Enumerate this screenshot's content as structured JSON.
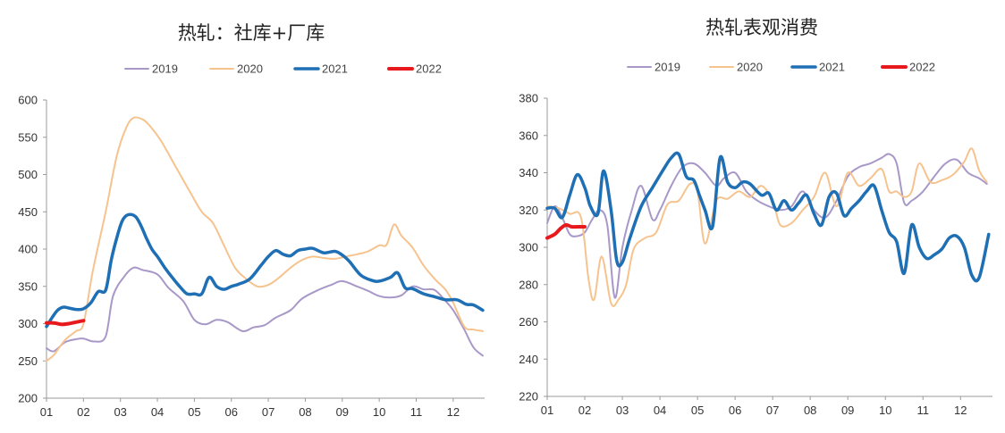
{
  "chart_data": [
    {
      "type": "line",
      "title": "热轧：社库+厂库",
      "x_ticks": [
        "01",
        "02",
        "03",
        "04",
        "05",
        "06",
        "07",
        "08",
        "09",
        "10",
        "11",
        "12"
      ],
      "ylim": [
        200,
        600
      ],
      "y_ticks": [
        200,
        250,
        300,
        350,
        400,
        450,
        500,
        550,
        600
      ],
      "legend_position": "top",
      "grid": false,
      "series": [
        {
          "name": "2019",
          "color": "#a898c8",
          "width": 2,
          "x": [
            1.0,
            1.2,
            1.5,
            1.8,
            2.0,
            2.3,
            2.6,
            2.8,
            3.1,
            3.35,
            3.6,
            4.0,
            4.3,
            4.7,
            5.0,
            5.3,
            5.6,
            5.9,
            6.3,
            6.6,
            6.9,
            7.2,
            7.6,
            7.9,
            8.3,
            8.7,
            9.0,
            9.4,
            9.7,
            10.0,
            10.3,
            10.6,
            10.9,
            11.2,
            11.5,
            11.8,
            12.0,
            12.3,
            12.55,
            12.8
          ],
          "y": [
            267,
            263,
            275,
            279,
            280,
            276,
            283,
            337,
            363,
            375,
            372,
            366,
            348,
            330,
            305,
            299,
            305,
            302,
            290,
            295,
            298,
            308,
            318,
            333,
            344,
            352,
            357,
            350,
            344,
            337,
            335,
            338,
            350,
            346,
            345,
            330,
            318,
            292,
            268,
            257
          ]
        },
        {
          "name": "2020",
          "color": "#f6c38e",
          "width": 2,
          "x": [
            1.0,
            1.2,
            1.5,
            1.8,
            2.0,
            2.25,
            2.6,
            2.9,
            3.15,
            3.35,
            3.6,
            3.8,
            4.1,
            4.5,
            4.9,
            5.2,
            5.5,
            5.8,
            6.1,
            6.4,
            6.7,
            7.0,
            7.3,
            7.6,
            7.9,
            8.2,
            8.5,
            8.8,
            9.1,
            9.4,
            9.7,
            10.0,
            10.2,
            10.4,
            10.6,
            10.9,
            11.2,
            11.5,
            11.8,
            12.0,
            12.3,
            12.55,
            12.8
          ],
          "y": [
            250,
            258,
            278,
            290,
            300,
            370,
            450,
            525,
            562,
            576,
            574,
            565,
            545,
            510,
            475,
            450,
            435,
            405,
            375,
            360,
            350,
            352,
            362,
            375,
            385,
            390,
            388,
            387,
            390,
            393,
            397,
            405,
            406,
            433,
            418,
            402,
            378,
            360,
            345,
            328,
            296,
            292,
            290
          ]
        },
        {
          "name": "2021",
          "color": "#1f6fb5",
          "width": 3.5,
          "x": [
            1.0,
            1.15,
            1.3,
            1.45,
            1.6,
            1.8,
            2.0,
            2.2,
            2.4,
            2.6,
            2.75,
            2.9,
            3.05,
            3.2,
            3.4,
            3.55,
            3.7,
            3.85,
            4.0,
            4.2,
            4.4,
            4.6,
            4.8,
            5.0,
            5.2,
            5.4,
            5.6,
            5.8,
            6.0,
            6.2,
            6.5,
            6.8,
            7.0,
            7.2,
            7.4,
            7.6,
            7.8,
            8.0,
            8.2,
            8.5,
            8.8,
            9.0,
            9.2,
            9.5,
            9.8,
            10.0,
            10.3,
            10.5,
            10.7,
            10.9,
            11.2,
            11.5,
            11.8,
            12.1,
            12.35,
            12.55,
            12.8
          ],
          "y": [
            296,
            308,
            318,
            322,
            321,
            319,
            320,
            328,
            343,
            345,
            385,
            415,
            438,
            446,
            444,
            432,
            415,
            400,
            390,
            375,
            362,
            350,
            340,
            340,
            340,
            362,
            350,
            346,
            350,
            353,
            360,
            378,
            390,
            398,
            393,
            391,
            398,
            400,
            401,
            395,
            397,
            392,
            383,
            365,
            358,
            357,
            362,
            368,
            348,
            347,
            340,
            336,
            332,
            332,
            326,
            325,
            318
          ]
        },
        {
          "name": "2022",
          "color": "#e8191c",
          "width": 4,
          "x": [
            1.0,
            1.2,
            1.4,
            1.6,
            1.8,
            2.0
          ],
          "y": [
            301,
            301,
            299,
            300,
            302,
            304
          ]
        }
      ]
    },
    {
      "type": "line",
      "title": "热轧表观消费",
      "x_ticks": [
        "01",
        "02",
        "03",
        "04",
        "05",
        "06",
        "07",
        "08",
        "09",
        "10",
        "11",
        "12"
      ],
      "ylim": [
        220,
        380
      ],
      "y_ticks": [
        220,
        240,
        260,
        280,
        300,
        320,
        340,
        360,
        380
      ],
      "legend_position": "top",
      "grid": false,
      "series": [
        {
          "name": "2019",
          "color": "#a898c8",
          "width": 2,
          "x": [
            1.0,
            1.2,
            1.4,
            1.6,
            1.8,
            2.0,
            2.2,
            2.4,
            2.6,
            2.8,
            3.0,
            3.25,
            3.5,
            3.8,
            4.0,
            4.3,
            4.6,
            4.9,
            5.2,
            5.5,
            5.7,
            6.0,
            6.3,
            6.6,
            6.9,
            7.2,
            7.5,
            7.8,
            8.1,
            8.4,
            8.7,
            9.0,
            9.3,
            9.6,
            9.9,
            10.1,
            10.3,
            10.5,
            10.7,
            11.0,
            11.3,
            11.6,
            11.9,
            12.2,
            12.5,
            12.7
          ],
          "y": [
            313,
            322,
            316,
            307,
            306,
            308,
            315,
            320,
            312,
            273,
            300,
            320,
            333,
            315,
            320,
            333,
            343,
            345,
            340,
            333,
            337,
            340,
            330,
            325,
            322,
            320,
            322,
            330,
            320,
            316,
            325,
            338,
            343,
            345,
            348,
            350,
            345,
            324,
            325,
            330,
            338,
            345,
            347,
            340,
            337,
            334
          ]
        },
        {
          "name": "2020",
          "color": "#f6c38e",
          "width": 2,
          "x": [
            1.0,
            1.3,
            1.6,
            1.9,
            2.1,
            2.25,
            2.45,
            2.7,
            2.9,
            3.1,
            3.3,
            3.6,
            3.9,
            4.2,
            4.5,
            4.8,
            5.0,
            5.2,
            5.5,
            5.8,
            6.1,
            6.4,
            6.7,
            7.0,
            7.2,
            7.5,
            7.8,
            8.1,
            8.4,
            8.7,
            9.0,
            9.3,
            9.6,
            9.9,
            10.1,
            10.3,
            10.5,
            10.7,
            10.9,
            11.2,
            11.5,
            11.8,
            12.1,
            12.3,
            12.5,
            12.7
          ],
          "y": [
            322,
            321,
            318,
            316,
            283,
            272,
            295,
            270,
            272,
            280,
            299,
            305,
            308,
            323,
            325,
            334,
            330,
            302,
            325,
            326,
            330,
            327,
            333,
            325,
            312,
            313,
            320,
            327,
            340,
            322,
            340,
            333,
            337,
            342,
            330,
            330,
            327,
            330,
            345,
            335,
            336,
            339,
            346,
            353,
            341,
            335
          ]
        },
        {
          "name": "2021",
          "color": "#1f6fb5",
          "width": 3.5,
          "x": [
            1.0,
            1.2,
            1.4,
            1.6,
            1.8,
            2.0,
            2.15,
            2.35,
            2.5,
            2.7,
            2.85,
            3.0,
            3.2,
            3.5,
            3.8,
            4.1,
            4.3,
            4.5,
            4.7,
            4.9,
            5.05,
            5.2,
            5.4,
            5.6,
            5.8,
            6.0,
            6.2,
            6.4,
            6.7,
            6.9,
            7.1,
            7.3,
            7.5,
            7.7,
            7.9,
            8.1,
            8.3,
            8.5,
            8.7,
            8.9,
            9.1,
            9.3,
            9.5,
            9.7,
            9.9,
            10.1,
            10.3,
            10.5,
            10.7,
            10.9,
            11.1,
            11.3,
            11.5,
            11.7,
            11.9,
            12.1,
            12.3,
            12.5,
            12.75
          ],
          "y": [
            321,
            321,
            316,
            328,
            339,
            332,
            322,
            318,
            341,
            320,
            293,
            292,
            305,
            322,
            332,
            342,
            348,
            350,
            338,
            336,
            328,
            320,
            311,
            348,
            335,
            332,
            335,
            334,
            328,
            329,
            320,
            325,
            320,
            324,
            328,
            318,
            312,
            327,
            329,
            317,
            321,
            325,
            330,
            333,
            320,
            308,
            303,
            286,
            312,
            300,
            294,
            296,
            299,
            305,
            306,
            300,
            285,
            284,
            307
          ]
        },
        {
          "name": "2022",
          "color": "#e8191c",
          "width": 4,
          "x": [
            1.0,
            1.2,
            1.35,
            1.5,
            1.65,
            1.8,
            2.0
          ],
          "y": [
            305,
            307,
            310,
            312,
            311,
            311,
            311
          ]
        }
      ]
    }
  ]
}
